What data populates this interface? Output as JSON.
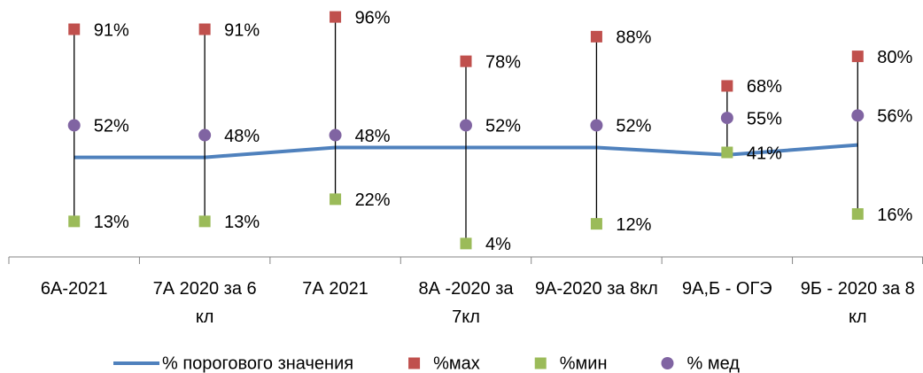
{
  "chart_data": {
    "type": "line",
    "categories": [
      "6А-2021",
      "7А 2020 за 6 кл",
      "7А 2021",
      "8А -2020 за 7кл",
      "9А-2020 за 8кл",
      "9А,Б - ОГЭ",
      "9Б - 2020 за 8 кл"
    ],
    "series": [
      {
        "name": "% порогового значения",
        "type": "line",
        "color": "#4f81bd",
        "values": [
          39,
          39,
          43,
          43,
          43,
          40,
          44
        ]
      },
      {
        "name": "%мах",
        "type": "scatter",
        "marker": "square",
        "color": "#c0504d",
        "values": [
          91,
          91,
          96,
          78,
          88,
          68,
          80
        ],
        "value_labels": [
          "91%",
          "91%",
          "96%",
          "78%",
          "88%",
          "68%",
          "80%"
        ]
      },
      {
        "name": "%мин",
        "type": "scatter",
        "marker": "square",
        "color": "#9bbb59",
        "values": [
          13,
          13,
          22,
          4,
          12,
          41,
          16
        ],
        "value_labels": [
          "13%",
          "13%",
          "22%",
          "4%",
          "12%",
          "41%",
          "16%"
        ]
      },
      {
        "name": "% мед",
        "type": "scatter",
        "marker": "circle",
        "color": "#8064a2",
        "values": [
          52,
          48,
          48,
          52,
          52,
          55,
          56
        ],
        "value_labels": [
          "52%",
          "48%",
          "48%",
          "52%",
          "52%",
          "55%",
          "56%"
        ]
      }
    ],
    "ylim": [
      0,
      100
    ],
    "high_low_lines": true,
    "legend": "bottom"
  }
}
